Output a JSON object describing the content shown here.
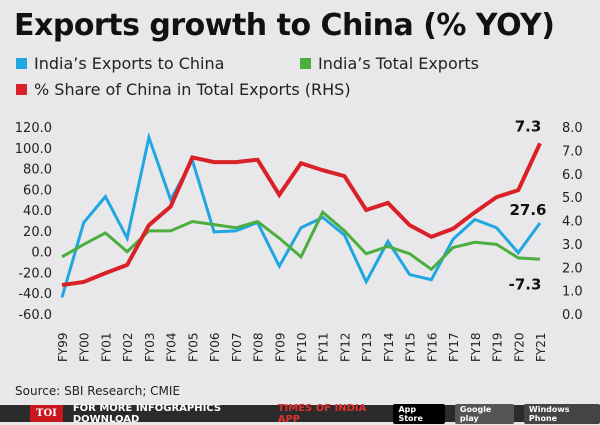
{
  "title": "Exports growth to China (% YOY)",
  "source": "Source: SBI Research; CMIE",
  "footer": {
    "logo": "TOI",
    "text": "FOR MORE INFOGRAPHICS DOWNLOAD",
    "app": "TIMES OF INDIA APP",
    "badges": [
      "App Store",
      "Google play",
      "Windows Phone"
    ]
  },
  "chart_data": {
    "type": "line",
    "title": "Exports growth to China (% YOY)",
    "categories": [
      "FY99",
      "FY00",
      "FY01",
      "FY02",
      "FY03",
      "FY04",
      "FY05",
      "FY06",
      "FY07",
      "FY08",
      "FY09",
      "FY10",
      "FY11",
      "FY12",
      "FY13",
      "FY14",
      "FY15",
      "FY16",
      "FY17",
      "FY18",
      "FY19",
      "FY20",
      "FY21"
    ],
    "y_left": {
      "lim": [
        -60,
        120
      ],
      "ticks": [
        "120.0",
        "100.0",
        "80.0",
        "60.0",
        "40.0",
        "20.0",
        "0.0",
        "-20.0",
        "-40.0",
        "-60.0"
      ]
    },
    "y_right": {
      "lim": [
        0,
        8
      ],
      "ticks": [
        "8.0",
        "7.0",
        "6.0",
        "5.0",
        "4.0",
        "3.0",
        "2.0",
        "1.0",
        "0.0"
      ]
    },
    "legend": "top",
    "grid": false,
    "series": [
      {
        "name": "India’s Exports to China",
        "axis": "left",
        "color": "#1ea7e1",
        "values": [
          -44,
          28,
          53,
          13,
          110,
          50,
          88,
          19,
          20,
          28,
          -14,
          23,
          33,
          16,
          -29,
          10,
          -22,
          -27,
          12,
          31,
          23,
          -1,
          27.6
        ],
        "end_label": "27.6"
      },
      {
        "name": "India’s Total Exports",
        "axis": "left",
        "color": "#4cae3f",
        "values": [
          -5,
          7,
          18,
          0,
          20,
          20,
          29,
          26,
          23,
          29,
          13,
          -5,
          38,
          20,
          -2,
          5,
          -2,
          -17,
          4,
          9,
          7,
          -6,
          -7.3
        ],
        "end_label": "-7.3"
      },
      {
        "name": "% Share of China in Total Exports (RHS)",
        "axis": "right",
        "color": "#d92127",
        "values": [
          1.24,
          1.37,
          1.75,
          2.1,
          3.8,
          4.6,
          6.7,
          6.5,
          6.5,
          6.6,
          5.1,
          6.45,
          6.15,
          5.9,
          4.45,
          4.75,
          3.8,
          3.3,
          3.65,
          4.35,
          5.0,
          5.3,
          7.3
        ],
        "end_label": "7.3"
      }
    ]
  }
}
